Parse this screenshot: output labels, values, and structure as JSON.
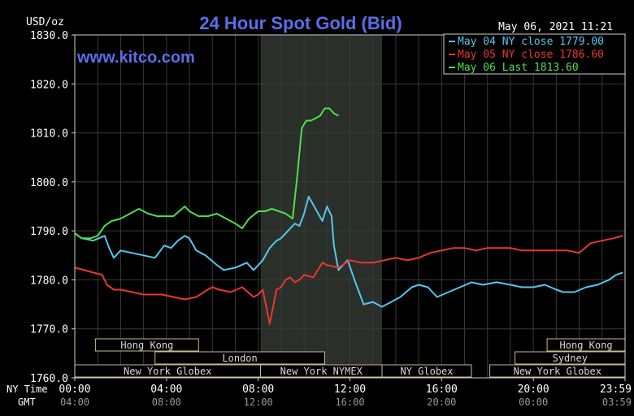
{
  "chart_data": {
    "type": "line",
    "title": "24 Hour Spot Gold (Bid)",
    "watermark": "www.kitco.com",
    "ylabel": "USD/oz",
    "timestamp": "May 06, 2021 11:21",
    "ylim": [
      1760,
      1830
    ],
    "xlim": [
      0,
      24
    ],
    "y_ticks": [
      1760,
      1770,
      1780,
      1790,
      1800,
      1810,
      1820,
      1830
    ],
    "y_tick_labels": [
      "1760.0",
      "1770.0",
      "1780.0",
      "1790.0",
      "1800.0",
      "1810.0",
      "1820.0",
      "1830.0"
    ],
    "x_ticks": [
      0,
      4,
      8,
      12,
      16,
      20,
      24
    ],
    "x_row1_label": "NY Time",
    "x_row2_label": "GMT",
    "x_row1_ticks": [
      "00:00",
      "04:00",
      "08:00",
      "12:00",
      "16:00",
      "20:00",
      "23:59"
    ],
    "x_row2_ticks": [
      "04:00",
      "08:00",
      "12:00",
      "16:00",
      "20:00",
      "00:00",
      "03:59"
    ],
    "grid": true,
    "legend_position": "top-right",
    "highlight_band": [
      8.1,
      13.4
    ],
    "colors": {
      "background": "#000000",
      "plot_bg": "#000000",
      "band": "#2a2f2a",
      "grid": "#3a3a3a",
      "frame": "#cfcfcf",
      "title": "#5b6ee8",
      "watermark": "#5b6ee8",
      "text": "#ffffff",
      "session_border": "#c9b98a",
      "session_text": "#d8d8d8"
    },
    "sessions": [
      {
        "label": "Hong Kong",
        "row": 1,
        "start": 0.9,
        "end": 5.4
      },
      {
        "label": "London",
        "row": 2,
        "start": 3.5,
        "end": 10.9
      },
      {
        "label": "New York Globex",
        "row": 3,
        "start": 0,
        "end": 8.1
      },
      {
        "label": "New York NYMEX",
        "row": 3,
        "start": 8.1,
        "end": 13.4
      },
      {
        "label": "NY Globex",
        "row": 3,
        "start": 13.4,
        "end": 17.3
      },
      {
        "label": "Hong Kong",
        "row": 1,
        "start": 20.6,
        "end": 24
      },
      {
        "label": "Sydney",
        "row": 2,
        "start": 19.2,
        "end": 24
      },
      {
        "label": "New York Globex",
        "row": 3,
        "start": 18.1,
        "end": 24
      }
    ],
    "series": [
      {
        "name": "May 04 NY close 1779.00",
        "color": "#55c7ee",
        "x": [
          0,
          0.3,
          0.8,
          1.3,
          1.5,
          1.7,
          2.0,
          2.5,
          3.0,
          3.5,
          3.9,
          4.2,
          4.5,
          4.8,
          5.0,
          5.3,
          5.7,
          6.2,
          6.5,
          7.0,
          7.5,
          7.8,
          8.2,
          8.5,
          8.8,
          9.0,
          9.3,
          9.6,
          9.8,
          10.0,
          10.2,
          10.5,
          10.8,
          11.0,
          11.2,
          11.3,
          11.5,
          11.7,
          11.9,
          12.2,
          12.6,
          13.0,
          13.4,
          13.8,
          14.2,
          14.7,
          15.0,
          15.4,
          15.8,
          16.3,
          16.8,
          17.3,
          17.8,
          18.4,
          19.0,
          19.5,
          20.0,
          20.5,
          21.0,
          21.3,
          21.8,
          22.3,
          22.8,
          23.3,
          23.6,
          23.9
        ],
        "values": [
          1789.5,
          1788.5,
          1788.0,
          1789.0,
          1786.5,
          1784.5,
          1786.0,
          1785.5,
          1785.0,
          1784.5,
          1787.0,
          1786.5,
          1788.0,
          1789.0,
          1788.5,
          1786.0,
          1785.0,
          1783.0,
          1782.0,
          1782.5,
          1783.5,
          1782.0,
          1784.0,
          1786.5,
          1788.0,
          1788.5,
          1790.0,
          1791.5,
          1791.0,
          1793.5,
          1797.0,
          1794.5,
          1792.0,
          1795.0,
          1793.0,
          1787.0,
          1782.0,
          1783.0,
          1784.0,
          1780.0,
          1775.0,
          1775.5,
          1774.5,
          1775.5,
          1776.5,
          1778.5,
          1779.0,
          1778.5,
          1776.5,
          1777.5,
          1778.5,
          1779.5,
          1779.0,
          1779.5,
          1779.0,
          1778.5,
          1778.5,
          1779.0,
          1778.0,
          1777.5,
          1777.5,
          1778.5,
          1779.0,
          1780.0,
          1781.0,
          1781.5
        ]
      },
      {
        "name": "May 05 NY close 1786.60",
        "color": "#e8382f",
        "x": [
          0,
          0.4,
          0.8,
          1.2,
          1.4,
          1.7,
          2.0,
          2.5,
          3.0,
          3.4,
          3.8,
          4.3,
          4.8,
          5.3,
          5.8,
          6.0,
          6.3,
          6.8,
          7.3,
          7.8,
          8.0,
          8.2,
          8.5,
          8.8,
          9.0,
          9.2,
          9.4,
          9.6,
          9.8,
          10.0,
          10.4,
          10.6,
          10.8,
          11.0,
          11.5,
          12.0,
          12.5,
          13.0,
          13.5,
          14.0,
          14.5,
          15.0,
          15.5,
          16.0,
          16.5,
          17.0,
          17.5,
          18.0,
          18.5,
          19.0,
          19.5,
          20.0,
          20.5,
          21.0,
          21.5,
          22.0,
          22.5,
          23.0,
          23.5,
          23.9
        ],
        "values": [
          1782.5,
          1782.0,
          1781.5,
          1781.0,
          1779.0,
          1778.0,
          1778.0,
          1777.5,
          1777.0,
          1777.0,
          1777.0,
          1776.5,
          1776.0,
          1776.5,
          1778.0,
          1778.5,
          1778.0,
          1777.5,
          1778.5,
          1776.5,
          1777.0,
          1778.0,
          1771.0,
          1778.0,
          1778.5,
          1780.0,
          1780.5,
          1779.5,
          1780.0,
          1781.0,
          1780.5,
          1782.0,
          1783.5,
          1783.0,
          1782.5,
          1784.0,
          1783.5,
          1783.5,
          1784.0,
          1784.5,
          1784.0,
          1784.5,
          1785.5,
          1786.0,
          1786.5,
          1786.5,
          1786.0,
          1786.5,
          1786.5,
          1786.5,
          1786.0,
          1786.0,
          1786.0,
          1786.0,
          1786.0,
          1785.5,
          1787.5,
          1788.0,
          1788.5,
          1789.0
        ]
      },
      {
        "name": "May 06 Last 1813.60",
        "color": "#4ee04e",
        "x": [
          0,
          0.3,
          0.7,
          1.0,
          1.3,
          1.6,
          2.0,
          2.4,
          2.8,
          3.2,
          3.6,
          4.0,
          4.3,
          4.8,
          5.0,
          5.4,
          5.8,
          6.2,
          6.6,
          7.0,
          7.3,
          7.6,
          8.0,
          8.3,
          8.6,
          8.9,
          9.2,
          9.5,
          9.7,
          9.9,
          10.1,
          10.3,
          10.5,
          10.7,
          10.9,
          11.1,
          11.3,
          11.5
        ],
        "values": [
          1789.5,
          1788.5,
          1788.5,
          1789.0,
          1791.0,
          1792.0,
          1792.5,
          1793.5,
          1794.5,
          1793.5,
          1793.0,
          1793.0,
          1793.0,
          1795.0,
          1794.0,
          1793.0,
          1793.0,
          1793.5,
          1792.5,
          1791.5,
          1790.5,
          1792.5,
          1794.0,
          1794.0,
          1794.5,
          1794.0,
          1793.5,
          1792.5,
          1801.0,
          1811.0,
          1812.5,
          1812.5,
          1813.0,
          1813.5,
          1815.0,
          1815.0,
          1814.0,
          1813.5
        ]
      }
    ]
  }
}
